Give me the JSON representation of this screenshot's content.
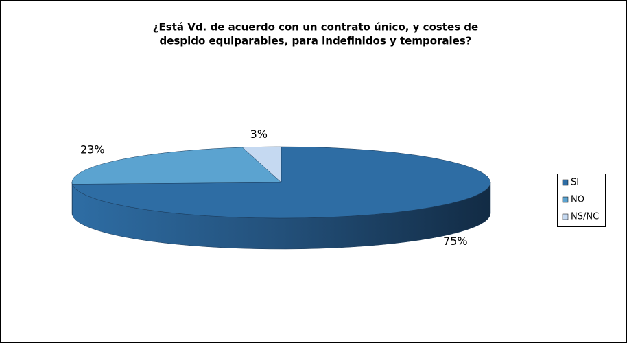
{
  "chart_data": {
    "type": "pie3d",
    "title": [
      "¿Está Vd. de acuerdo con un contrato único, y costes de",
      "despido equiparables, para indefinidos y temporales?"
    ],
    "categories": [
      "SI",
      "NO",
      "NS/NC"
    ],
    "values": [
      75,
      23,
      3
    ],
    "value_labels": [
      "75%",
      "23%",
      "3%"
    ],
    "colors": [
      "#2e6da4",
      "#5ba3d0",
      "#c5d9f1"
    ],
    "legend": "right"
  }
}
